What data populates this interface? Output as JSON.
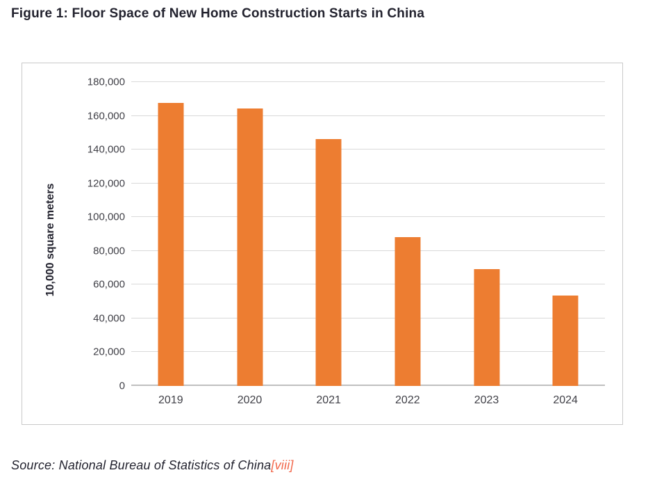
{
  "figure": {
    "title": "Figure 1: Floor Space of New Home Construction Starts in China",
    "source_prefix": "Source: National Bureau of Statistics of China",
    "source_citation": "[viii]"
  },
  "colors": {
    "bar": "#ED7D31",
    "title_text": "#22222E",
    "axis_text": "#3F3F46",
    "gridline": "#D9D9D9",
    "axis_line": "#BFBFBF",
    "box_border": "#C9C9C9",
    "citation": "#F26649"
  },
  "chart_data": {
    "type": "bar",
    "categories": [
      "2019",
      "2020",
      "2021",
      "2022",
      "2023",
      "2024"
    ],
    "values": [
      167500,
      164300,
      146300,
      88000,
      69000,
      53500
    ],
    "title": "Figure 1: Floor Space of New Home Construction Starts in China",
    "xlabel": "",
    "ylabel": "10,000 square meters",
    "ylim": [
      0,
      180000
    ],
    "ytick_step": 20000,
    "ytick_labels": [
      "0",
      "20,000",
      "40,000",
      "60,000",
      "80,000",
      "100,000",
      "120,000",
      "140,000",
      "160,000",
      "180,000"
    ],
    "grid": true,
    "legend": false,
    "bar_color": "#ED7D31"
  }
}
